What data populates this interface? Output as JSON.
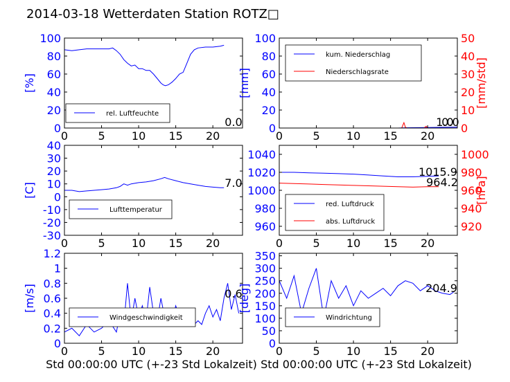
{
  "title": "2014-03-18 Wetterdaten Station ROTZ□",
  "colors": {
    "blue": "#0000ff",
    "red": "#ff0000"
  },
  "chart_data": [
    {
      "id": "humidity",
      "type": "line",
      "ylabel": "[%]",
      "ylim": [
        0,
        100
      ],
      "yticks": [
        0,
        20,
        40,
        60,
        80,
        100
      ],
      "xlim": [
        0,
        24
      ],
      "xticks": [
        0,
        5,
        10,
        15,
        20
      ],
      "annotation": "0.0",
      "series": [
        {
          "name": "rel. Luftfeuchte",
          "color": "#0000ff",
          "x": [
            0,
            1,
            2,
            3,
            4,
            5,
            6,
            6.5,
            7,
            7.5,
            8,
            8.5,
            9,
            9.5,
            10,
            10.5,
            11,
            11.5,
            12,
            12.5,
            13,
            13.3,
            13.6,
            14,
            14.5,
            15,
            15.5,
            16,
            16.5,
            17,
            17.5,
            18,
            19,
            20,
            21,
            21.5
          ],
          "y": [
            87,
            86,
            87,
            88,
            88,
            88,
            88,
            89,
            86,
            82,
            76,
            72,
            69,
            70,
            66,
            66,
            64,
            64,
            60,
            55,
            50,
            48,
            47,
            48,
            51,
            55,
            60,
            62,
            72,
            82,
            87,
            89,
            90,
            90,
            91,
            92
          ]
        }
      ]
    },
    {
      "id": "precip",
      "type": "line",
      "ylabel": "[mm]",
      "ylim": [
        0,
        100
      ],
      "yticks": [
        0,
        20,
        40,
        60,
        80,
        100
      ],
      "ylabel2": "[mm/std]",
      "ylim2": [
        0,
        50
      ],
      "yticks2": [
        0,
        10,
        20,
        30,
        40,
        50
      ],
      "xlim": [
        0,
        24
      ],
      "xticks": [
        0,
        5,
        10,
        15,
        20
      ],
      "annotations": [
        "1.0",
        "0.0"
      ],
      "series": [
        {
          "name": "kum. Niederschlag",
          "color": "#0000ff",
          "axis": "left",
          "x": [
            0,
            16,
            17,
            20,
            24
          ],
          "y": [
            0,
            0,
            0.3,
            0.5,
            1.0
          ]
        },
        {
          "name": "Niederschlagsrate",
          "color": "#ff0000",
          "axis": "right",
          "x": [
            0,
            16.5,
            16.8,
            17,
            17.2,
            18,
            19.5,
            19.8,
            20,
            24
          ],
          "y": [
            0,
            0,
            3,
            0.5,
            0,
            0,
            0,
            1,
            0,
            0
          ]
        }
      ]
    },
    {
      "id": "temperature",
      "type": "line",
      "ylabel": "[C]",
      "ylim": [
        -30,
        40
      ],
      "yticks": [
        -30,
        -20,
        -10,
        0,
        10,
        20,
        30,
        40
      ],
      "xlim": [
        0,
        24
      ],
      "xticks": [
        0,
        5,
        10,
        15,
        20
      ],
      "annotation": "7.0",
      "series": [
        {
          "name": "Lufttemperatur",
          "color": "#0000ff",
          "x": [
            0,
            1,
            2,
            3,
            4,
            5,
            6,
            7,
            7.5,
            8,
            8.5,
            9,
            10,
            11,
            12,
            13,
            13.5,
            14,
            15,
            16,
            17,
            18,
            19,
            20,
            21,
            21.5
          ],
          "y": [
            5,
            5,
            4,
            4.5,
            5,
            5.5,
            6,
            7,
            8,
            10,
            9,
            10,
            11,
            11.5,
            12.5,
            14,
            15,
            14,
            12.5,
            11,
            10,
            9,
            8,
            7.5,
            7,
            7
          ]
        }
      ]
    },
    {
      "id": "pressure",
      "type": "line",
      "ylim": [
        950,
        1050
      ],
      "yticks": [
        960,
        980,
        1000,
        1020,
        1040
      ],
      "ylabel2": "[hPa]",
      "ylim2": [
        910,
        1010
      ],
      "yticks2": [
        920,
        940,
        960,
        980,
        1000
      ],
      "xlim": [
        0,
        24
      ],
      "xticks": [
        0,
        5,
        10,
        15,
        20
      ],
      "annotations": [
        "1015.9",
        "964.2"
      ],
      "series": [
        {
          "name": "red. Luftdruck",
          "color": "#0000ff",
          "axis": "left",
          "x": [
            0,
            2,
            4,
            6,
            8,
            10,
            12,
            14,
            16,
            18,
            20,
            21.5
          ],
          "y": [
            1020,
            1020,
            1019.5,
            1019,
            1018.5,
            1018,
            1017,
            1016,
            1015,
            1015,
            1015.5,
            1016
          ]
        },
        {
          "name": "abs. Luftdruck",
          "color": "#ff0000",
          "axis": "right",
          "x": [
            0,
            2,
            4,
            6,
            8,
            10,
            12,
            14,
            16,
            18,
            20,
            21.5
          ],
          "y": [
            968,
            967.5,
            967,
            966.5,
            966,
            965.5,
            965,
            964.5,
            964,
            963.5,
            964,
            964
          ]
        }
      ]
    },
    {
      "id": "wind_speed",
      "type": "line",
      "ylabel": "[m/s]",
      "ylim": [
        0,
        1.2
      ],
      "yticks": [
        0.0,
        0.2,
        0.4,
        0.6,
        0.8,
        1.0,
        1.2
      ],
      "xlim": [
        0,
        24
      ],
      "xticks": [
        0,
        5,
        10,
        15,
        20
      ],
      "xlabel": "Std 00:00:00 UTC (+-23 Std Lokalzeit)",
      "annotation": "0.6",
      "series": [
        {
          "name": "Windgeschwindigkeit",
          "color": "#0000ff",
          "x": [
            0,
            1,
            2,
            3,
            4,
            5,
            6,
            7,
            7.5,
            8,
            8.5,
            9,
            9.5,
            10,
            10.5,
            11,
            11.5,
            12,
            12.5,
            13,
            13.5,
            14,
            14.5,
            15,
            15.5,
            16,
            16.5,
            17,
            17.5,
            18,
            18.5,
            19,
            19.5,
            20,
            20.5,
            21,
            21.5,
            22,
            22.5,
            23,
            23.5
          ],
          "y": [
            0.15,
            0.2,
            0.1,
            0.25,
            0.15,
            0.2,
            0.3,
            0.15,
            0.4,
            0.25,
            0.8,
            0.3,
            0.6,
            0.35,
            0.5,
            0.3,
            0.75,
            0.4,
            0.3,
            0.6,
            0.35,
            0.45,
            0.3,
            0.5,
            0.35,
            0.3,
            0.45,
            0.3,
            0.25,
            0.3,
            0.25,
            0.4,
            0.5,
            0.35,
            0.45,
            0.3,
            0.6,
            0.8,
            0.45,
            0.65,
            0.4
          ]
        }
      ]
    },
    {
      "id": "wind_dir",
      "type": "line",
      "ylabel": "[deg]",
      "ylim": [
        0,
        360
      ],
      "yticks": [
        0,
        50,
        100,
        150,
        200,
        250,
        300,
        350
      ],
      "xlim": [
        0,
        24
      ],
      "xticks": [
        0,
        5,
        10,
        15,
        20
      ],
      "xlabel": "Std 00:00:00 UTC (+-23 Std Lokalzeit)",
      "annotation": "204.9",
      "series": [
        {
          "name": "Windrichtung",
          "color": "#0000ff",
          "x": [
            0,
            1,
            2,
            3,
            4,
            5,
            6,
            7,
            8,
            9,
            10,
            11,
            12,
            13,
            14,
            15,
            16,
            17,
            18,
            19,
            20,
            21,
            22,
            23,
            23.5
          ],
          "y": [
            250,
            180,
            270,
            120,
            220,
            300,
            100,
            250,
            180,
            230,
            150,
            210,
            180,
            200,
            220,
            190,
            230,
            250,
            240,
            210,
            230,
            210,
            200,
            195,
            205
          ]
        }
      ]
    }
  ]
}
